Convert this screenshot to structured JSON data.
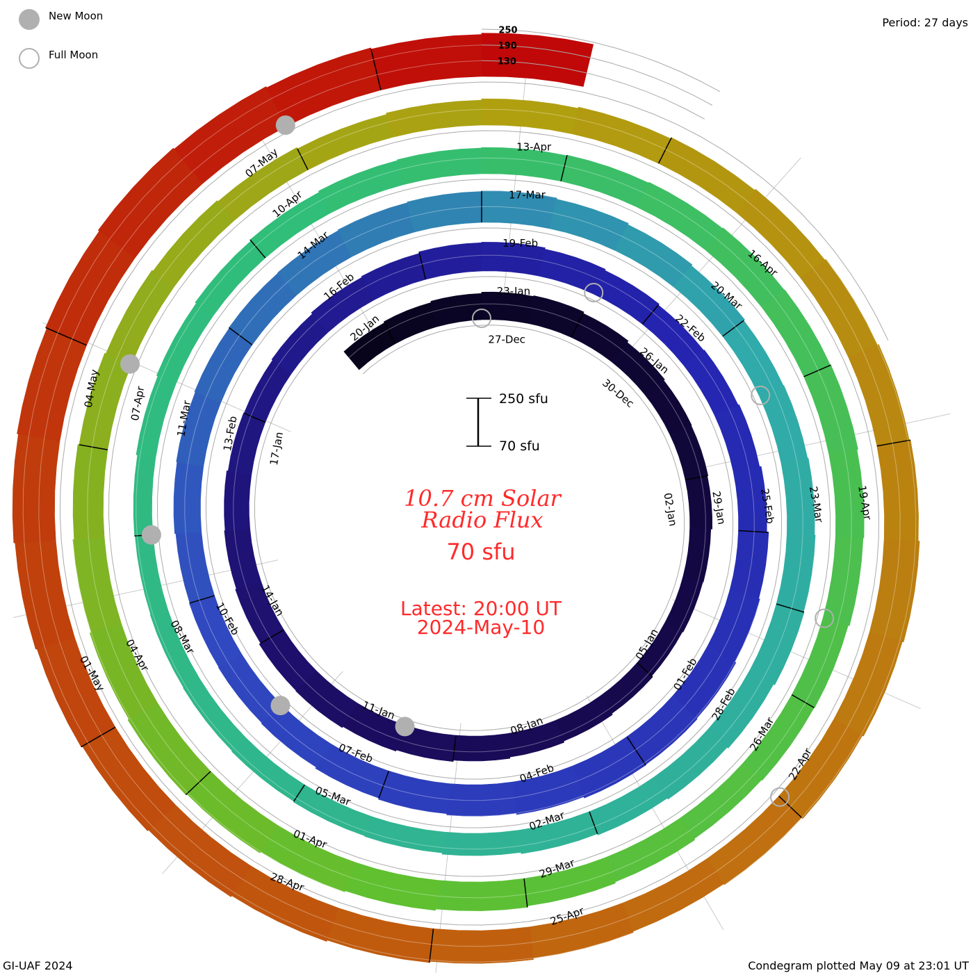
{
  "legend": {
    "new_moon": "New Moon",
    "full_moon": "Full Moon"
  },
  "period": "Period: 27 days",
  "footer_left": "GI-UAF 2024",
  "footer_right": "Condegram plotted May 09 at 23:01 UT",
  "center": {
    "title_line1": "10.7 cm Solar",
    "title_line2": "Radio Flux",
    "current_value": "70 sfu",
    "latest_line1": "Latest: 20:00 UT",
    "latest_line2": "2024-May-10"
  },
  "scale_bar": {
    "top_label": "250 sfu",
    "bottom_label": "70 sfu"
  },
  "colors": {
    "text_red": "#ff2a2a",
    "moon_gray": "#b0b0b0"
  },
  "chart_data": {
    "type": "condegram-spiral",
    "title": "10.7 cm Solar Radio Flux",
    "units": "sfu",
    "period_days": 27,
    "baseline_sfu": 70,
    "level_labels": [
      "250",
      "190",
      "130"
    ],
    "start_date": "24-Dec",
    "end_date": "10-May",
    "daily_flux": [
      160,
      165,
      170,
      175,
      178,
      172,
      165,
      160,
      158,
      155,
      150,
      148,
      145,
      150,
      155,
      160,
      165,
      170,
      175,
      180,
      178,
      172,
      168,
      165,
      160,
      158,
      162,
      168,
      172,
      178,
      180,
      175,
      170,
      165,
      168,
      172,
      178,
      185,
      190,
      195,
      198,
      200,
      195,
      190,
      185,
      180,
      175,
      172,
      170,
      168,
      172,
      175,
      178,
      180,
      182,
      185,
      188,
      190,
      185,
      180,
      175,
      170,
      172,
      175,
      178,
      180,
      175,
      170,
      165,
      160,
      155,
      150,
      148,
      145,
      142,
      140,
      138,
      140,
      145,
      150,
      155,
      160,
      165,
      168,
      170,
      172,
      175,
      178,
      180,
      182,
      178,
      175,
      170,
      168,
      165,
      170,
      175,
      180,
      185,
      190,
      195,
      200,
      195,
      190,
      185,
      180,
      175,
      170,
      165,
      160,
      165,
      170,
      175,
      180,
      185,
      190,
      195,
      200,
      205,
      200,
      195,
      190,
      185,
      190,
      195,
      200,
      205,
      210,
      215,
      220,
      225,
      230,
      235,
      240,
      245,
      240,
      235,
      230,
      235
    ],
    "date_labels": [
      "27-Dec",
      "30-Dec",
      "02-Jan",
      "05-Jan",
      "08-Jan",
      "11-Jan",
      "14-Jan",
      "17-Jan",
      "20-Jan",
      "23-Jan",
      "26-Jan",
      "29-Jan",
      "01-Feb",
      "04-Feb",
      "07-Feb",
      "10-Feb",
      "13-Feb",
      "16-Feb",
      "19-Feb",
      "22-Feb",
      "25-Feb",
      "28-Feb",
      "02-Mar",
      "05-Mar",
      "08-Mar",
      "11-Mar",
      "14-Mar",
      "17-Mar",
      "20-Mar",
      "23-Mar",
      "26-Mar",
      "29-Mar",
      "01-Apr",
      "04-Apr",
      "07-Apr",
      "10-Apr",
      "13-Apr",
      "16-Apr",
      "19-Apr",
      "22-Apr",
      "25-Apr",
      "28-Apr",
      "01-May",
      "04-May",
      "07-May"
    ],
    "new_moon_day_offsets": [
      15,
      44,
      74,
      103,
      133
    ],
    "full_moon_day_offsets": [
      0,
      29,
      59,
      89,
      118
    ]
  }
}
